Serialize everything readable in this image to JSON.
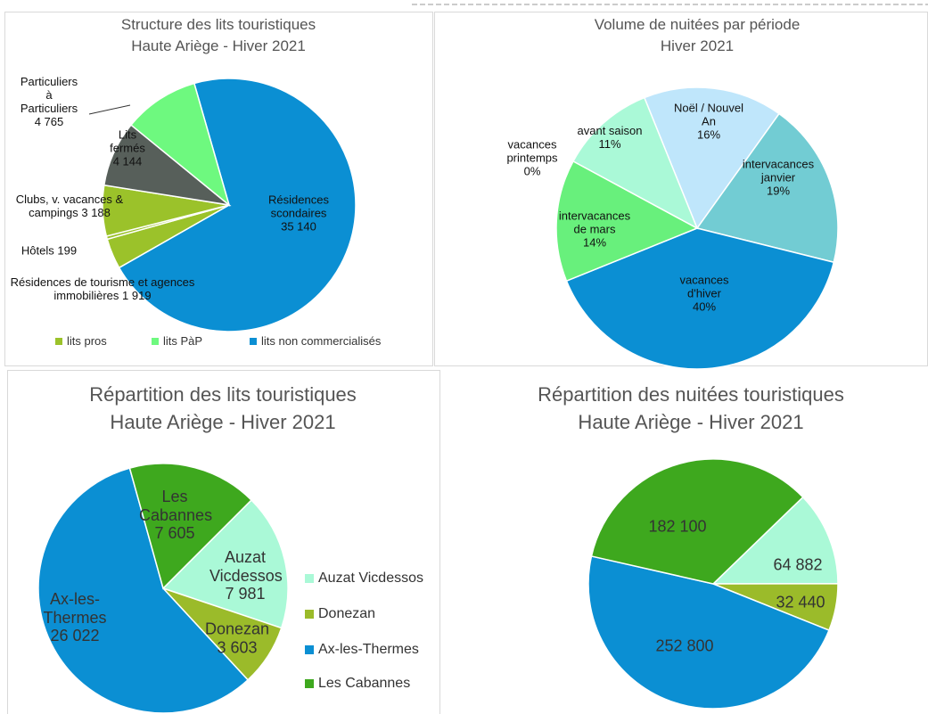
{
  "chart_data": [
    {
      "type": "pie",
      "title": "Structure des lits touristiques",
      "subtitle": "Haute Ariège - Hiver 2021",
      "categories": [
        "Résidences scondaires",
        "Résidences de tourisme et agences immobilières",
        "Hôtels",
        "Clubs, v. vacances & campings",
        "Lits fermés",
        "Particuliers à Particuliers"
      ],
      "values": [
        35140,
        1919,
        199,
        3188,
        4144,
        4765
      ],
      "value_labels": [
        "35 140",
        "1 919",
        "199",
        "3 188",
        "4 144",
        "4 765"
      ],
      "colors": [
        "#0b8fd3",
        "#9bc22a",
        "#9bc22a",
        "#9bc22a",
        "#575f5a",
        "#6ef97f"
      ],
      "legend": [
        {
          "name": "lits pros",
          "color": "#9bc22a"
        },
        {
          "name": "lits PàP",
          "color": "#6ef97f"
        },
        {
          "name": "lits non commercialisés",
          "color": "#0b8fd3"
        }
      ]
    },
    {
      "type": "pie",
      "title": "Volume de nuitées par période",
      "subtitle": "Hiver 2021",
      "categories": [
        "Noël / Nouvel An",
        "intervacances janvier",
        "vacances d'hiver",
        "intervacances de mars",
        "vacances printemps",
        "avant saison"
      ],
      "values": [
        16,
        19,
        40,
        14,
        0,
        11
      ],
      "value_labels": [
        "16%",
        "19%",
        "40%",
        "14%",
        "0%",
        "11%"
      ],
      "colors": [
        "#bfe6fb",
        "#72ccd3",
        "#0b8fd3",
        "#68f07c",
        "#9bc22a",
        "#aaf9d7"
      ]
    },
    {
      "type": "pie",
      "title": "Répartition des lits touristiques",
      "subtitle": "Haute Ariège - Hiver 2021",
      "categories": [
        "Auzat Vicdessos",
        "Donezan",
        "Ax-les-Thermes",
        "Les Cabannes"
      ],
      "values": [
        7981,
        3603,
        26022,
        7605
      ],
      "value_labels": [
        "7 981",
        "3 603",
        "26 022",
        "7 605"
      ],
      "colors": [
        "#aaf9d7",
        "#9bbb2a",
        "#0b8fd3",
        "#3ea81e"
      ],
      "legend_position": "right"
    },
    {
      "type": "pie",
      "title": "Répartition des nuitées touristiques",
      "subtitle": "Haute Ariège - Hiver 2021",
      "values": [
        64882,
        32440,
        252800,
        182100
      ],
      "value_labels": [
        "64 882",
        "32 440",
        "252 800",
        "182 100"
      ],
      "colors": [
        "#aaf9d7",
        "#9bbb2a",
        "#0b8fd3",
        "#3ea81e"
      ]
    }
  ]
}
